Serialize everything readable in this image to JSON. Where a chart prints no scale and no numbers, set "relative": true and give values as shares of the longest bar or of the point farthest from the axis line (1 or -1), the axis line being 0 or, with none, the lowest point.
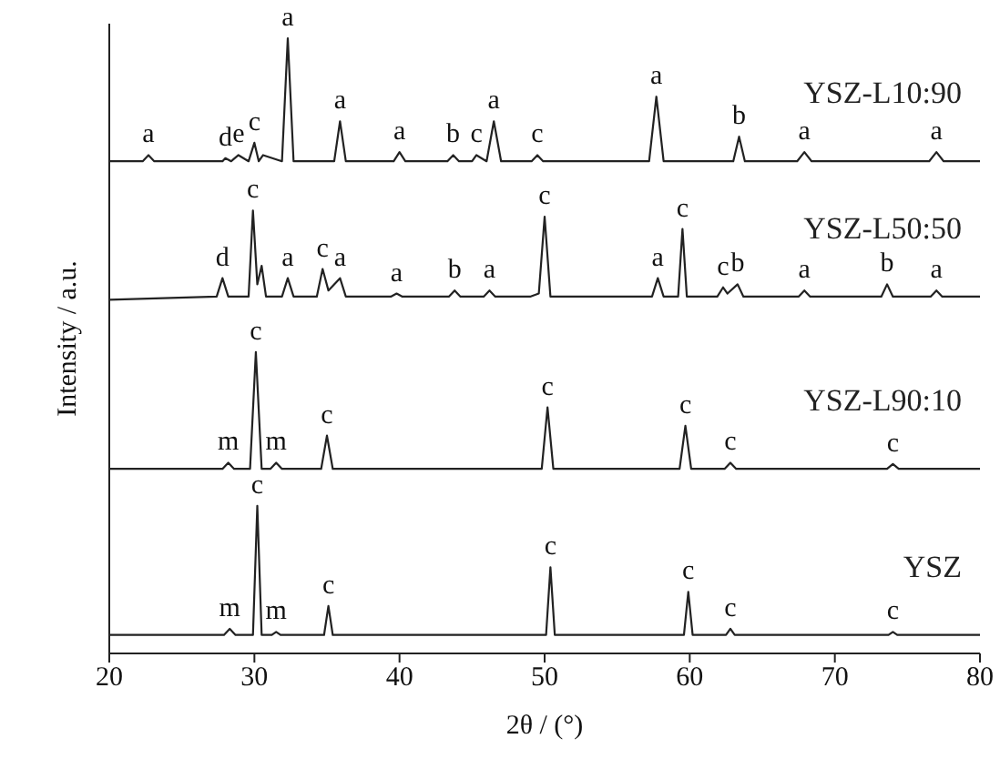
{
  "chart_data": {
    "type": "line",
    "relative": true,
    "xlabel": "2θ / (°)",
    "ylabel": "Intensity / a.u.",
    "xlim": [
      20,
      80
    ],
    "xticks": [
      20,
      30,
      40,
      50,
      60,
      70,
      80
    ],
    "grid": false,
    "legend": false,
    "marker": "none",
    "line_style": "solid",
    "series": [
      {
        "name": "YSZ-L10:90",
        "color": "#222222",
        "x": [
          20,
          22.3,
          22.7,
          23.1,
          27.8,
          28.0,
          28.4,
          28.9,
          29.6,
          30.0,
          30.3,
          30.6,
          31.9,
          32.3,
          32.7,
          35.5,
          35.9,
          36.3,
          39.6,
          40.0,
          40.4,
          43.3,
          43.7,
          44.1,
          45.0,
          45.3,
          46.0,
          46.5,
          47.0,
          49.1,
          49.5,
          49.9,
          57.2,
          57.7,
          58.2,
          63.0,
          63.4,
          63.8,
          67.4,
          67.9,
          68.4,
          76.5,
          77.0,
          77.5,
          80
        ],
        "values": [
          0.8,
          0.8,
          0.81,
          0.8,
          0.8,
          0.805,
          0.8,
          0.81,
          0.8,
          0.83,
          0.8,
          0.81,
          0.8,
          1.0,
          0.8,
          0.8,
          0.865,
          0.8,
          0.8,
          0.815,
          0.8,
          0.8,
          0.81,
          0.8,
          0.8,
          0.81,
          0.8,
          0.865,
          0.8,
          0.8,
          0.81,
          0.8,
          0.8,
          0.905,
          0.8,
          0.8,
          0.84,
          0.8,
          0.8,
          0.815,
          0.8,
          0.8,
          0.815,
          0.8,
          0.8
        ]
      },
      {
        "name": "YSZ-L50:50",
        "color": "#222222",
        "x": [
          20,
          27.4,
          27.8,
          28.2,
          29.6,
          29.9,
          30.2,
          30.5,
          30.8,
          31.9,
          32.3,
          32.7,
          34.3,
          34.7,
          35.1,
          35.9,
          36.3,
          39.4,
          39.8,
          40.2,
          43.4,
          43.8,
          44.2,
          45.8,
          46.2,
          46.6,
          49.0,
          49.6,
          50.0,
          50.4,
          57.4,
          57.8,
          58.2,
          59.2,
          59.5,
          59.8,
          61.9,
          62.3,
          62.6,
          63.3,
          63.7,
          67.5,
          67.9,
          68.3,
          73.2,
          73.6,
          74.0,
          76.6,
          77.0,
          77.4,
          80
        ],
        "values": [
          0.575,
          0.58,
          0.61,
          0.58,
          0.58,
          0.72,
          0.6,
          0.63,
          0.58,
          0.58,
          0.61,
          0.58,
          0.58,
          0.625,
          0.59,
          0.61,
          0.58,
          0.58,
          0.585,
          0.58,
          0.58,
          0.59,
          0.58,
          0.58,
          0.59,
          0.58,
          0.58,
          0.585,
          0.71,
          0.58,
          0.58,
          0.61,
          0.58,
          0.58,
          0.69,
          0.58,
          0.58,
          0.595,
          0.585,
          0.6,
          0.58,
          0.58,
          0.59,
          0.58,
          0.58,
          0.6,
          0.58,
          0.58,
          0.59,
          0.58,
          0.58
        ]
      },
      {
        "name": "YSZ-L90:10",
        "color": "#222222",
        "x": [
          20,
          27.8,
          28.2,
          28.6,
          29.7,
          30.1,
          30.5,
          31.1,
          31.5,
          31.9,
          34.6,
          35.0,
          35.4,
          49.8,
          50.2,
          50.6,
          59.3,
          59.7,
          60.1,
          62.4,
          62.8,
          63.2,
          73.6,
          74.0,
          74.4,
          80
        ],
        "values": [
          0.3,
          0.3,
          0.31,
          0.3,
          0.3,
          0.49,
          0.3,
          0.3,
          0.31,
          0.3,
          0.3,
          0.354,
          0.3,
          0.3,
          0.4,
          0.3,
          0.3,
          0.37,
          0.3,
          0.3,
          0.31,
          0.3,
          0.3,
          0.308,
          0.3,
          0.3
        ]
      },
      {
        "name": "YSZ",
        "color": "#222222",
        "x": [
          20,
          27.9,
          28.3,
          28.7,
          29.9,
          30.2,
          30.5,
          31.2,
          31.5,
          31.8,
          34.8,
          35.1,
          35.4,
          50.1,
          50.4,
          50.7,
          59.6,
          59.9,
          60.2,
          62.5,
          62.8,
          63.1,
          73.7,
          74.0,
          74.3,
          80
        ],
        "values": [
          0.03,
          0.03,
          0.04,
          0.03,
          0.03,
          0.24,
          0.03,
          0.03,
          0.035,
          0.03,
          0.03,
          0.077,
          0.03,
          0.03,
          0.14,
          0.03,
          0.03,
          0.1,
          0.03,
          0.03,
          0.04,
          0.03,
          0.03,
          0.035,
          0.03,
          0.03
        ]
      }
    ],
    "annotations": [
      {
        "text": "a",
        "x": 22.7,
        "y": 0.81
      },
      {
        "text": "d",
        "x": 28.0,
        "y": 0.805
      },
      {
        "text": "e",
        "x": 28.9,
        "y": 0.81
      },
      {
        "text": "c",
        "x": 30.0,
        "y": 0.83
      },
      {
        "text": "a",
        "x": 32.3,
        "y": 1.0
      },
      {
        "text": "a",
        "x": 35.9,
        "y": 0.865
      },
      {
        "text": "a",
        "x": 40.0,
        "y": 0.815
      },
      {
        "text": "b",
        "x": 43.7,
        "y": 0.81
      },
      {
        "text": "c",
        "x": 45.3,
        "y": 0.81
      },
      {
        "text": "a",
        "x": 46.5,
        "y": 0.865
      },
      {
        "text": "c",
        "x": 49.5,
        "y": 0.81
      },
      {
        "text": "a",
        "x": 57.7,
        "y": 0.905
      },
      {
        "text": "b",
        "x": 63.4,
        "y": 0.84
      },
      {
        "text": "a",
        "x": 67.9,
        "y": 0.815
      },
      {
        "text": "a",
        "x": 77.0,
        "y": 0.815
      },
      {
        "text": "d",
        "x": 27.8,
        "y": 0.61
      },
      {
        "text": "c",
        "x": 29.9,
        "y": 0.72
      },
      {
        "text": "a",
        "x": 32.3,
        "y": 0.61
      },
      {
        "text": "c",
        "x": 34.7,
        "y": 0.625
      },
      {
        "text": "a",
        "x": 35.9,
        "y": 0.61
      },
      {
        "text": "a",
        "x": 39.8,
        "y": 0.585
      },
      {
        "text": "b",
        "x": 43.8,
        "y": 0.59
      },
      {
        "text": "a",
        "x": 46.2,
        "y": 0.59
      },
      {
        "text": "c",
        "x": 50.0,
        "y": 0.71
      },
      {
        "text": "a",
        "x": 57.8,
        "y": 0.61
      },
      {
        "text": "c",
        "x": 59.5,
        "y": 0.69
      },
      {
        "text": "c",
        "x": 62.3,
        "y": 0.595
      },
      {
        "text": "b",
        "x": 63.3,
        "y": 0.6
      },
      {
        "text": "a",
        "x": 67.9,
        "y": 0.59
      },
      {
        "text": "b",
        "x": 73.6,
        "y": 0.6
      },
      {
        "text": "a",
        "x": 77.0,
        "y": 0.59
      },
      {
        "text": "m",
        "x": 28.2,
        "y": 0.31
      },
      {
        "text": "c",
        "x": 30.1,
        "y": 0.49
      },
      {
        "text": "m",
        "x": 31.5,
        "y": 0.31
      },
      {
        "text": "c",
        "x": 35.0,
        "y": 0.354
      },
      {
        "text": "c",
        "x": 50.2,
        "y": 0.4
      },
      {
        "text": "c",
        "x": 59.7,
        "y": 0.37
      },
      {
        "text": "c",
        "x": 62.8,
        "y": 0.31
      },
      {
        "text": "c",
        "x": 74.0,
        "y": 0.308
      },
      {
        "text": "m",
        "x": 28.3,
        "y": 0.04
      },
      {
        "text": "c",
        "x": 30.2,
        "y": 0.24
      },
      {
        "text": "m",
        "x": 31.5,
        "y": 0.035
      },
      {
        "text": "c",
        "x": 35.1,
        "y": 0.077
      },
      {
        "text": "c",
        "x": 50.4,
        "y": 0.14
      },
      {
        "text": "c",
        "x": 59.9,
        "y": 0.1
      },
      {
        "text": "c",
        "x": 62.8,
        "y": 0.04
      },
      {
        "text": "c",
        "x": 74.0,
        "y": 0.035
      }
    ]
  }
}
